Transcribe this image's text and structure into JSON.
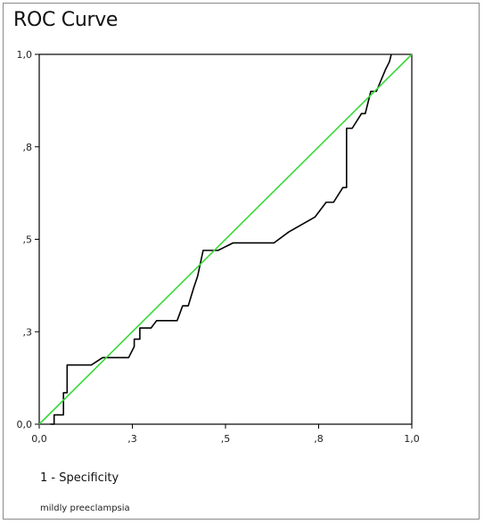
{
  "chart_data": {
    "type": "line",
    "title": "ROC Curve",
    "xlabel": "1 - Specificity",
    "ylabel": "",
    "xlim": [
      0,
      1
    ],
    "ylim": [
      0,
      1
    ],
    "x_ticks": [
      0.0,
      0.25,
      0.5,
      0.75,
      1.0
    ],
    "x_tick_labels": [
      "0,0",
      ",3",
      ",5",
      ",8",
      "1,0"
    ],
    "y_ticks": [
      0.0,
      0.25,
      0.5,
      0.75,
      1.0
    ],
    "y_tick_labels": [
      "0,0",
      ",3",
      ",5",
      ",8",
      "1,0"
    ],
    "grid": false,
    "legend": "none",
    "series": [
      {
        "color": "#000000",
        "points": [
          [
            0.03,
            0.0
          ],
          [
            0.04,
            0.0
          ],
          [
            0.04,
            0.025
          ],
          [
            0.065,
            0.025
          ],
          [
            0.065,
            0.085
          ],
          [
            0.075,
            0.085
          ],
          [
            0.075,
            0.16
          ],
          [
            0.14,
            0.16
          ],
          [
            0.17,
            0.18
          ],
          [
            0.2,
            0.18
          ],
          [
            0.24,
            0.18
          ],
          [
            0.255,
            0.21
          ],
          [
            0.255,
            0.23
          ],
          [
            0.27,
            0.23
          ],
          [
            0.27,
            0.26
          ],
          [
            0.3,
            0.26
          ],
          [
            0.315,
            0.28
          ],
          [
            0.37,
            0.28
          ],
          [
            0.385,
            0.32
          ],
          [
            0.4,
            0.32
          ],
          [
            0.415,
            0.37
          ],
          [
            0.425,
            0.4
          ],
          [
            0.44,
            0.47
          ],
          [
            0.48,
            0.47
          ],
          [
            0.5,
            0.48
          ],
          [
            0.52,
            0.49
          ],
          [
            0.63,
            0.49
          ],
          [
            0.67,
            0.52
          ],
          [
            0.74,
            0.56
          ],
          [
            0.77,
            0.6
          ],
          [
            0.79,
            0.6
          ],
          [
            0.815,
            0.64
          ],
          [
            0.825,
            0.64
          ],
          [
            0.825,
            0.8
          ],
          [
            0.84,
            0.8
          ],
          [
            0.865,
            0.84
          ],
          [
            0.875,
            0.84
          ],
          [
            0.89,
            0.9
          ],
          [
            0.905,
            0.9
          ],
          [
            0.93,
            0.96
          ],
          [
            0.94,
            0.98
          ],
          [
            0.945,
            1.0
          ]
        ]
      },
      {
        "color": "#39d939",
        "points": [
          [
            0.0,
            0.0
          ],
          [
            1.0,
            1.0
          ]
        ]
      }
    ],
    "footnote": "mildly preeclampsia"
  },
  "colors": {
    "roc_line": "#000000",
    "reference_line": "#39d939",
    "axis": "#000000"
  }
}
